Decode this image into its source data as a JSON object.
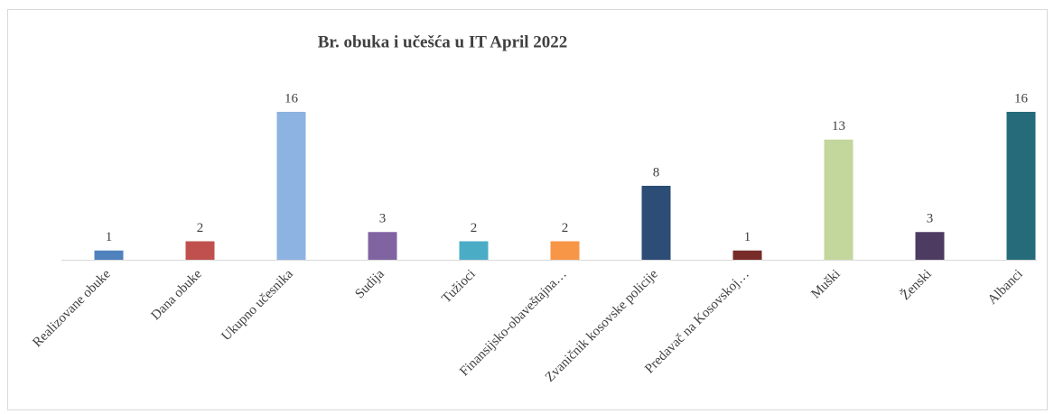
{
  "chart_data": {
    "type": "bar",
    "title": "Br. obuka  i učešća u IT   April  2022",
    "categories": [
      "Realizovane obuke",
      "Dana obuke",
      "Ukupno učesnika",
      "Sudija",
      "Tužioci",
      "Finansijsko-obaveštajna…",
      "Zvaničnik kosovske policije",
      "Predavač na Kosovskoj…",
      "Muški",
      "Ženski",
      "Albanci"
    ],
    "values": [
      1,
      2,
      16,
      3,
      2,
      2,
      8,
      1,
      13,
      3,
      16
    ],
    "colors": [
      "#4f81bd",
      "#c0504d",
      "#8db3e2",
      "#8064a2",
      "#4bacc6",
      "#f79646",
      "#2c4d75",
      "#772c2a",
      "#c3d69b",
      "#4e3b62",
      "#256b7a"
    ]
  }
}
